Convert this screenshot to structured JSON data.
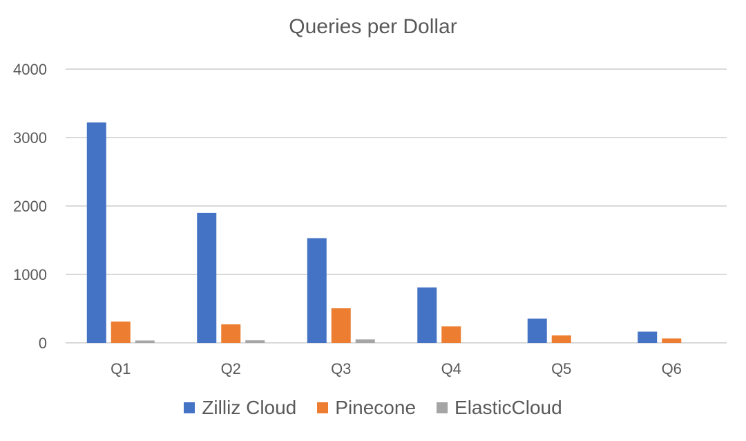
{
  "chart_data": {
    "type": "bar",
    "title": "Queries per Dollar",
    "xlabel": "",
    "ylabel": "",
    "categories": [
      "Q1",
      "Q2",
      "Q3",
      "Q4",
      "Q5",
      "Q6"
    ],
    "series": [
      {
        "name": "Zilliz Cloud",
        "color": "#4472C4",
        "values": [
          3220,
          1900,
          1530,
          810,
          355,
          165
        ]
      },
      {
        "name": "Pinecone",
        "color": "#ED7D31",
        "values": [
          310,
          270,
          505,
          240,
          108,
          65
        ]
      },
      {
        "name": "ElasticCloud",
        "color": "#A5A5A5",
        "values": [
          35,
          38,
          50,
          0,
          0,
          0
        ]
      }
    ],
    "ylim": [
      0,
      4000
    ],
    "yticks": [
      "0",
      "1000",
      "2000",
      "3000",
      "4000"
    ],
    "grid": true,
    "legend_position": "bottom"
  }
}
